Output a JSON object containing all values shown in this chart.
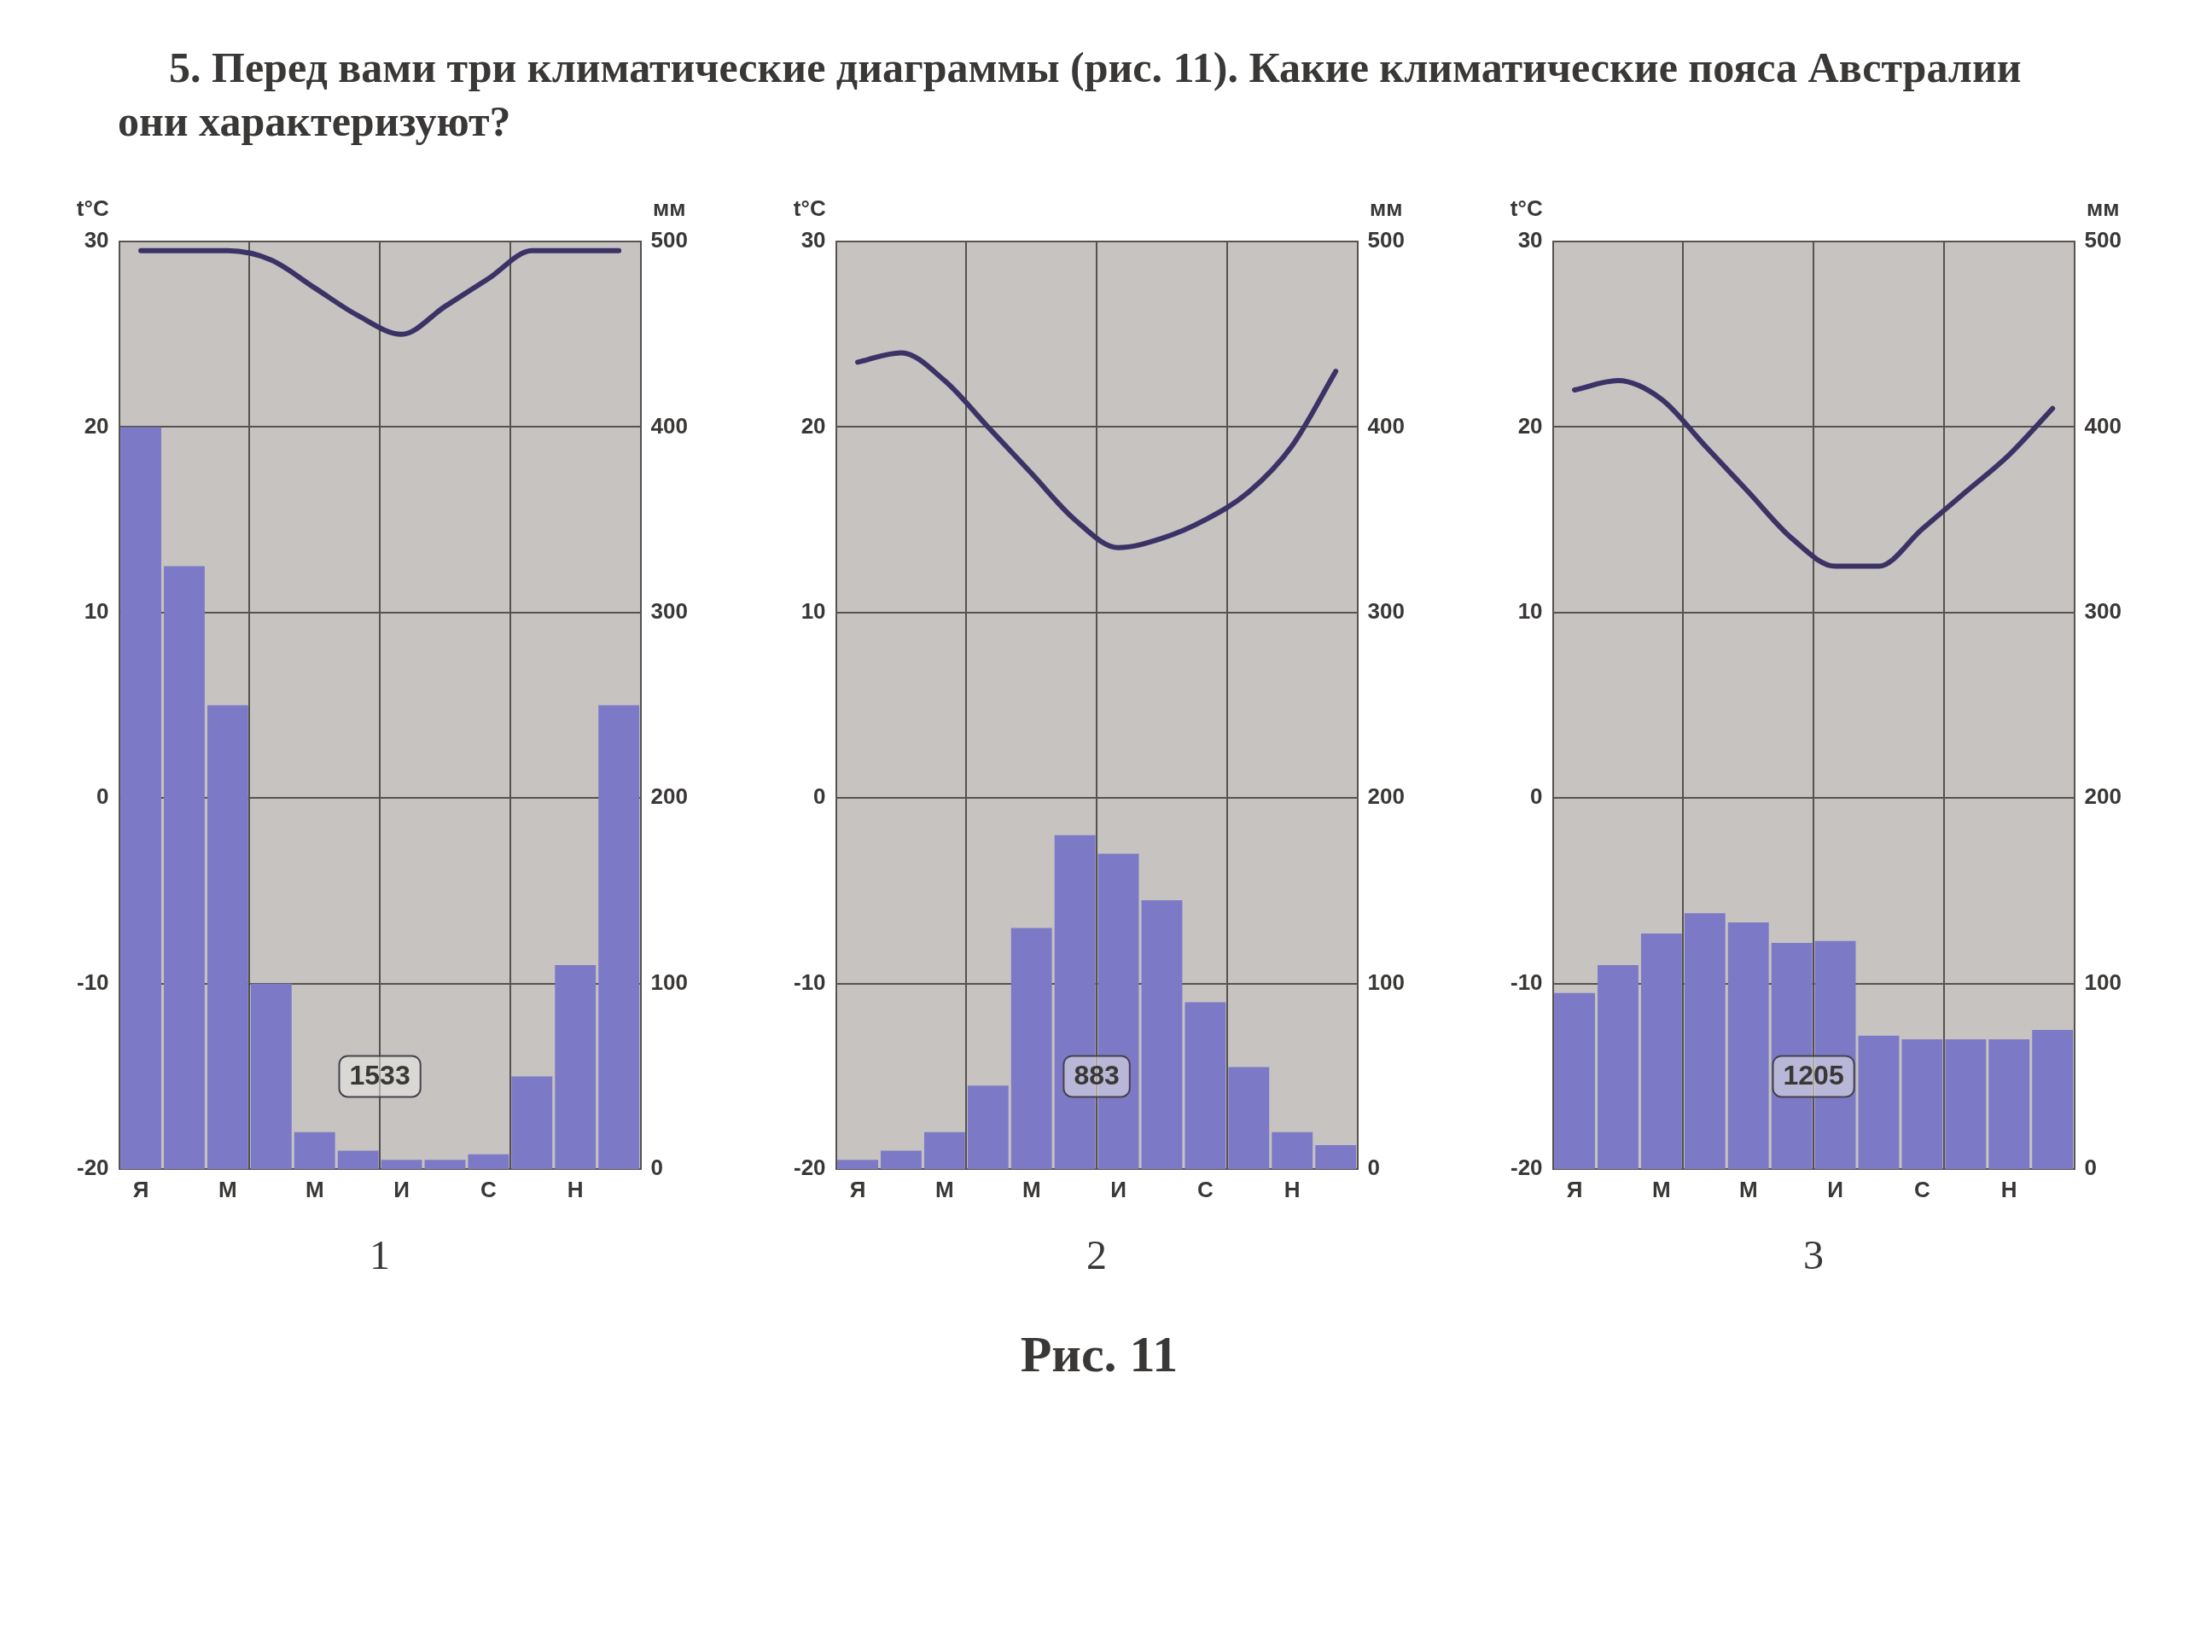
{
  "chart_data": [
    {
      "type": "other",
      "title": "5. Перед вами три климатические диаграммы (рис. 11). Какие климатические пояса Австралии они характеризуют?"
    },
    {
      "type": "bar",
      "xlabel": "1",
      "ylabel": "t°C",
      "y2label": "мм",
      "categories": [
        "Я",
        null,
        "М",
        null,
        "М",
        null,
        "И",
        null,
        "С",
        null,
        "Н",
        null
      ],
      "series": [
        {
          "type": "bar",
          "axis": "y2",
          "color": "#7c7ac6",
          "values": [
            400,
            325,
            250,
            100,
            20,
            10,
            5,
            5,
            8,
            50,
            110,
            250
          ]
        },
        {
          "type": "line",
          "color": "#3b3366",
          "values": [
            29.5,
            29.5,
            29.5,
            29,
            27.5,
            26,
            25,
            26.5,
            28,
            29.5,
            29.5,
            29.5
          ]
        }
      ],
      "ylim": [
        -20,
        30
      ],
      "yticks": [
        -20,
        -10,
        0,
        10,
        20,
        30
      ],
      "y2lim": [
        0,
        500
      ],
      "y2ticks": [
        0,
        100,
        200,
        300,
        400,
        500
      ],
      "grid": true,
      "legend": false,
      "marker": "none",
      "annotations": [
        "1533"
      ]
    },
    {
      "type": "bar",
      "xlabel": "2",
      "ylabel": "t°C",
      "y2label": "мм",
      "categories": [
        "Я",
        null,
        "М",
        null,
        "М",
        null,
        "И",
        null,
        "С",
        null,
        "Н",
        null
      ],
      "series": [
        {
          "type": "bar",
          "axis": "y2",
          "color": "#7c7ac6",
          "values": [
            5,
            10,
            20,
            45,
            130,
            180,
            170,
            145,
            90,
            55,
            20,
            13
          ]
        },
        {
          "type": "line",
          "color": "#3b3366",
          "values": [
            23.5,
            24,
            22.5,
            20,
            17.5,
            15,
            13.5,
            14,
            15,
            16.5,
            19,
            23
          ]
        }
      ],
      "ylim": [
        -20,
        30
      ],
      "yticks": [
        -20,
        -10,
        0,
        10,
        20,
        30
      ],
      "y2lim": [
        0,
        500
      ],
      "y2ticks": [
        0,
        100,
        200,
        300,
        400,
        500
      ],
      "grid": true,
      "legend": false,
      "marker": "none",
      "annotations": [
        "883"
      ]
    },
    {
      "type": "bar",
      "xlabel": "3",
      "ylabel": "t°C",
      "y2label": "мм",
      "categories": [
        "Я",
        null,
        "М",
        null,
        "М",
        null,
        "И",
        null,
        "С",
        null,
        "Н",
        null
      ],
      "series": [
        {
          "type": "bar",
          "axis": "y2",
          "color": "#7c7ac6",
          "values": [
            95,
            110,
            127,
            138,
            133,
            122,
            123,
            72,
            70,
            70,
            70,
            75
          ]
        },
        {
          "type": "line",
          "color": "#3b3366",
          "values": [
            22,
            22.5,
            21.5,
            19,
            16.5,
            14,
            12.5,
            12.5,
            14.5,
            16.5,
            18.5,
            21
          ]
        }
      ],
      "ylim": [
        -20,
        30
      ],
      "yticks": [
        -20,
        -10,
        0,
        10,
        20,
        30
      ],
      "y2lim": [
        0,
        500
      ],
      "y2ticks": [
        0,
        100,
        200,
        300,
        400,
        500
      ],
      "grid": true,
      "legend": false,
      "marker": "none",
      "annotations": [
        "1205"
      ]
    },
    {
      "type": "other",
      "annotations": [
        "Рис. 11"
      ]
    }
  ]
}
